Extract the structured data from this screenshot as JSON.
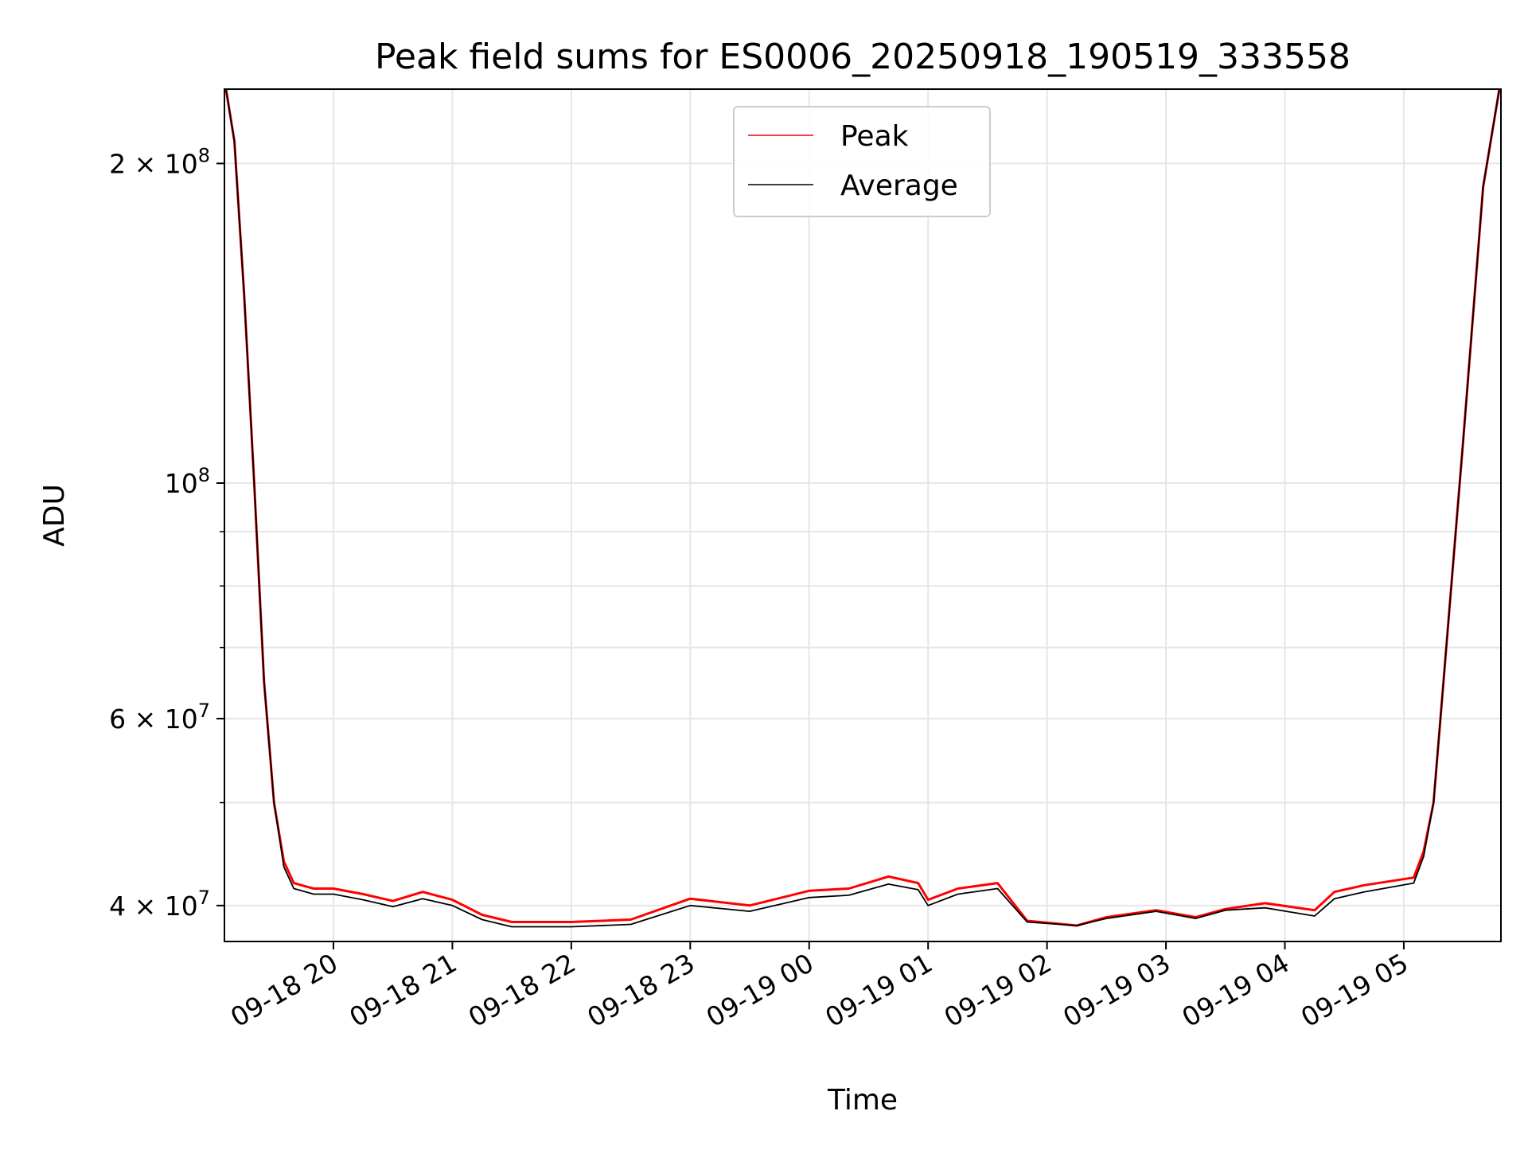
{
  "chart_data": {
    "type": "line",
    "title": "Peak field sums for ES0006_20250918_190519_333558",
    "xlabel": "Time",
    "ylabel": "ADU",
    "y_scale": "log",
    "ylim": [
      37000000,
      235000000
    ],
    "xlim": [
      "2025-09-18 19:05",
      "2025-09-19 05:49"
    ],
    "grid": true,
    "legend_position": "upper center",
    "x_ticks": [
      {
        "value": "2025-09-18 20:00",
        "label": "09-18 20"
      },
      {
        "value": "2025-09-18 21:00",
        "label": "09-18 21"
      },
      {
        "value": "2025-09-18 22:00",
        "label": "09-18 22"
      },
      {
        "value": "2025-09-18 23:00",
        "label": "09-18 23"
      },
      {
        "value": "2025-09-19 00:00",
        "label": "09-19 00"
      },
      {
        "value": "2025-09-19 01:00",
        "label": "09-19 01"
      },
      {
        "value": "2025-09-19 02:00",
        "label": "09-19 02"
      },
      {
        "value": "2025-09-19 03:00",
        "label": "09-19 03"
      },
      {
        "value": "2025-09-19 04:00",
        "label": "09-19 04"
      },
      {
        "value": "2025-09-19 05:00",
        "label": "09-19 05"
      }
    ],
    "y_ticks_major": [
      {
        "value": 40000000,
        "label": "4 × 10^7"
      },
      {
        "value": 60000000,
        "label": "6 × 10^7"
      },
      {
        "value": 100000000,
        "label": "10^8"
      },
      {
        "value": 200000000,
        "label": "2 × 10^8"
      }
    ],
    "y_ticks_minor": [
      50000000,
      70000000,
      80000000,
      90000000
    ],
    "series": [
      {
        "name": "Peak",
        "color": "#ff0000",
        "points": [
          [
            "2025-09-18 19:05",
            240000000
          ],
          [
            "2025-09-18 19:10",
            210000000
          ],
          [
            "2025-09-18 19:15",
            150000000
          ],
          [
            "2025-09-18 19:20",
            100000000
          ],
          [
            "2025-09-18 19:25",
            65000000
          ],
          [
            "2025-09-18 19:30",
            50000000
          ],
          [
            "2025-09-18 19:35",
            44000000
          ],
          [
            "2025-09-18 19:40",
            42000000
          ],
          [
            "2025-09-18 19:50",
            41500000
          ],
          [
            "2025-09-18 20:00",
            41500000
          ],
          [
            "2025-09-18 20:15",
            41000000
          ],
          [
            "2025-09-18 20:30",
            40400000
          ],
          [
            "2025-09-18 20:45",
            41200000
          ],
          [
            "2025-09-18 21:00",
            40500000
          ],
          [
            "2025-09-18 21:15",
            39200000
          ],
          [
            "2025-09-18 21:30",
            38600000
          ],
          [
            "2025-09-18 22:00",
            38600000
          ],
          [
            "2025-09-18 22:30",
            38800000
          ],
          [
            "2025-09-18 23:00",
            40600000
          ],
          [
            "2025-09-18 23:30",
            40000000
          ],
          [
            "2025-09-19 00:00",
            41300000
          ],
          [
            "2025-09-19 00:20",
            41500000
          ],
          [
            "2025-09-19 00:40",
            42600000
          ],
          [
            "2025-09-19 00:55",
            42000000
          ],
          [
            "2025-09-19 01:00",
            40500000
          ],
          [
            "2025-09-19 01:15",
            41500000
          ],
          [
            "2025-09-19 01:35",
            42000000
          ],
          [
            "2025-09-19 01:50",
            38700000
          ],
          [
            "2025-09-19 02:15",
            38300000
          ],
          [
            "2025-09-19 02:30",
            39000000
          ],
          [
            "2025-09-19 02:55",
            39600000
          ],
          [
            "2025-09-19 03:15",
            39000000
          ],
          [
            "2025-09-19 03:30",
            39700000
          ],
          [
            "2025-09-19 03:50",
            40200000
          ],
          [
            "2025-09-19 04:15",
            39600000
          ],
          [
            "2025-09-19 04:25",
            41200000
          ],
          [
            "2025-09-19 04:40",
            41800000
          ],
          [
            "2025-09-19 05:05",
            42500000
          ],
          [
            "2025-09-19 05:10",
            45000000
          ],
          [
            "2025-09-19 05:15",
            50000000
          ],
          [
            "2025-09-19 05:20",
            65000000
          ],
          [
            "2025-09-19 05:30",
            110000000
          ],
          [
            "2025-09-19 05:40",
            190000000
          ],
          [
            "2025-09-19 05:49",
            240000000
          ]
        ]
      },
      {
        "name": "Average",
        "color": "#000000",
        "points": [
          [
            "2025-09-18 19:05",
            240000000
          ],
          [
            "2025-09-18 19:10",
            210000000
          ],
          [
            "2025-09-18 19:15",
            150000000
          ],
          [
            "2025-09-18 19:20",
            100000000
          ],
          [
            "2025-09-18 19:25",
            65000000
          ],
          [
            "2025-09-18 19:30",
            50000000
          ],
          [
            "2025-09-18 19:35",
            43500000
          ],
          [
            "2025-09-18 19:40",
            41500000
          ],
          [
            "2025-09-18 19:50",
            41000000
          ],
          [
            "2025-09-18 20:00",
            41000000
          ],
          [
            "2025-09-18 20:15",
            40500000
          ],
          [
            "2025-09-18 20:30",
            39900000
          ],
          [
            "2025-09-18 20:45",
            40600000
          ],
          [
            "2025-09-18 21:00",
            40000000
          ],
          [
            "2025-09-18 21:15",
            38800000
          ],
          [
            "2025-09-18 21:30",
            38200000
          ],
          [
            "2025-09-18 22:00",
            38200000
          ],
          [
            "2025-09-18 22:30",
            38400000
          ],
          [
            "2025-09-18 23:00",
            40000000
          ],
          [
            "2025-09-18 23:30",
            39500000
          ],
          [
            "2025-09-19 00:00",
            40700000
          ],
          [
            "2025-09-19 00:20",
            40900000
          ],
          [
            "2025-09-19 00:40",
            41900000
          ],
          [
            "2025-09-19 00:55",
            41400000
          ],
          [
            "2025-09-19 01:00",
            40000000
          ],
          [
            "2025-09-19 01:15",
            41000000
          ],
          [
            "2025-09-19 01:35",
            41500000
          ],
          [
            "2025-09-19 01:50",
            38600000
          ],
          [
            "2025-09-19 02:15",
            38300000
          ],
          [
            "2025-09-19 02:30",
            38900000
          ],
          [
            "2025-09-19 02:55",
            39500000
          ],
          [
            "2025-09-19 03:15",
            38900000
          ],
          [
            "2025-09-19 03:30",
            39600000
          ],
          [
            "2025-09-19 03:50",
            39800000
          ],
          [
            "2025-09-19 04:15",
            39100000
          ],
          [
            "2025-09-19 04:25",
            40600000
          ],
          [
            "2025-09-19 04:40",
            41200000
          ],
          [
            "2025-09-19 05:05",
            42000000
          ],
          [
            "2025-09-19 05:10",
            44500000
          ],
          [
            "2025-09-19 05:15",
            50000000
          ],
          [
            "2025-09-19 05:20",
            65000000
          ],
          [
            "2025-09-19 05:30",
            110000000
          ],
          [
            "2025-09-19 05:40",
            190000000
          ],
          [
            "2025-09-19 05:49",
            240000000
          ]
        ]
      }
    ]
  }
}
